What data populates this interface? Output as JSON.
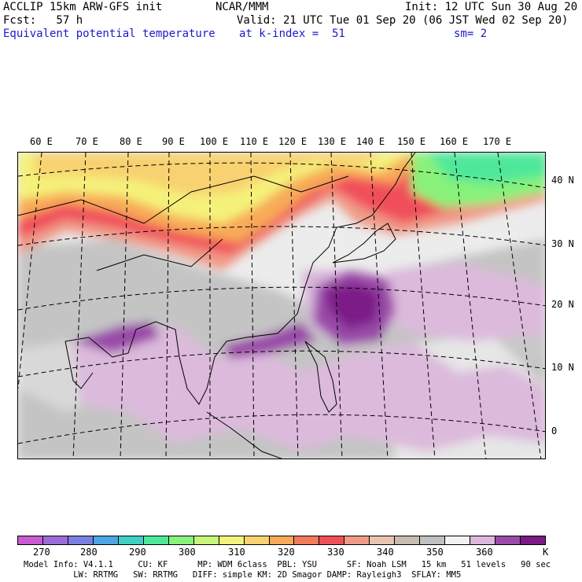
{
  "header": {
    "line1_left": "ACCLIP 15km ARW-GFS init",
    "line1_center": "NCAR/MMM",
    "line1_right": "Init: 12 UTC Sun 30 Aug 20",
    "line2_left": "Fcst:   57 h",
    "line2_right": "Valid: 21 UTC Tue 01 Sep 20 (06 JST Wed 02 Sep 20)",
    "line3_left": "Equivalent potential temperature",
    "line3_center": "at k-index =  51",
    "line3_right": "sm= 2"
  },
  "map": {
    "lon_labels": [
      "60 E",
      "70 E",
      "80 E",
      "90 E",
      "100 E",
      "110 E",
      "120 E",
      "130 E",
      "140 E",
      "150 E",
      "160 E",
      "170 E"
    ],
    "lat_labels": [
      "40 N",
      "30 N",
      "20 N",
      "10 N",
      "0"
    ]
  },
  "colorbar": {
    "unit": "K",
    "labels": [
      "270",
      "280",
      "290",
      "300",
      "310",
      "320",
      "330",
      "340",
      "350",
      "360"
    ],
    "colors": [
      "#c85ad2",
      "#9b6cd8",
      "#7a80e0",
      "#4ca6e4",
      "#3ed0c4",
      "#4ee89a",
      "#88f27a",
      "#c8f47a",
      "#f4f27a",
      "#f8d270",
      "#f8aa58",
      "#f47a5a",
      "#f0505a",
      "#f09a88",
      "#e8c4b0",
      "#c8bcb0",
      "#c0c0c0",
      "#f2f2f2",
      "#dcb8dc",
      "#9a4aa8",
      "#7c1a88"
    ]
  },
  "footer": {
    "line1": "Model Info: V4.1.1     CU: KF      MP: WDM 6class  PBL: YSU      SF: Noah LSM   15 km   51 levels   90 sec",
    "line2": "          LW: RRTMG   SW: RRTMG   DIFF: simple KM: 2D Smagor DAMP: Rayleigh3  SFLAY: MM5"
  }
}
